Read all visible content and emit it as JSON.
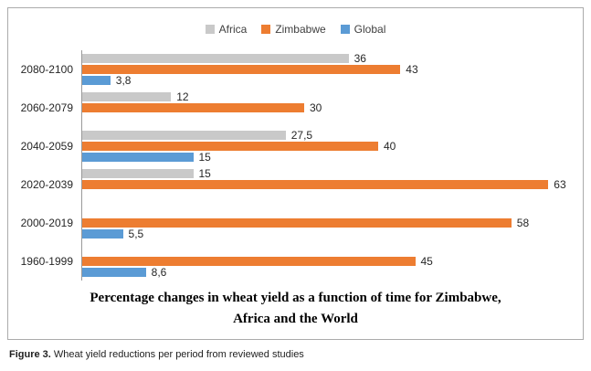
{
  "chart_data": {
    "type": "bar",
    "orientation": "horizontal",
    "title": "Percentage changes in wheat yield as a function of time for Zimbabwe, Africa and the World",
    "title_lines": [
      "Percentage changes in wheat yield as a function of time for Zimbabwe,",
      "Africa and the World"
    ],
    "categories": [
      "2080-2100",
      "2060-2079",
      "2040-2059",
      "2020-2039",
      "2000-2019",
      "1960-1999"
    ],
    "series": [
      {
        "name": "Africa",
        "color": "#c9c9c9",
        "values": [
          36,
          12,
          27.5,
          15,
          null,
          null
        ],
        "labels": [
          "36",
          "12",
          "27,5",
          "15",
          null,
          null
        ]
      },
      {
        "name": "Zimbabwe",
        "color": "#ed7d31",
        "values": [
          43,
          30,
          40,
          63,
          58,
          45
        ],
        "labels": [
          "43",
          "30",
          "40",
          "63",
          "58",
          "45"
        ]
      },
      {
        "name": "Global",
        "color": "#5b9bd5",
        "values": [
          3.8,
          null,
          15,
          null,
          5.5,
          8.6
        ],
        "labels": [
          "3,8",
          null,
          "15",
          null,
          "5,5",
          "8,6"
        ]
      }
    ],
    "xlim": [
      0,
      65
    ],
    "legend": {
      "position": "top",
      "entries": [
        "Africa",
        "Zimbabwe",
        "Global"
      ]
    },
    "grid": false
  },
  "caption": {
    "label": "Figure 3.",
    "text": " Wheat yield reductions per period from reviewed studies"
  }
}
